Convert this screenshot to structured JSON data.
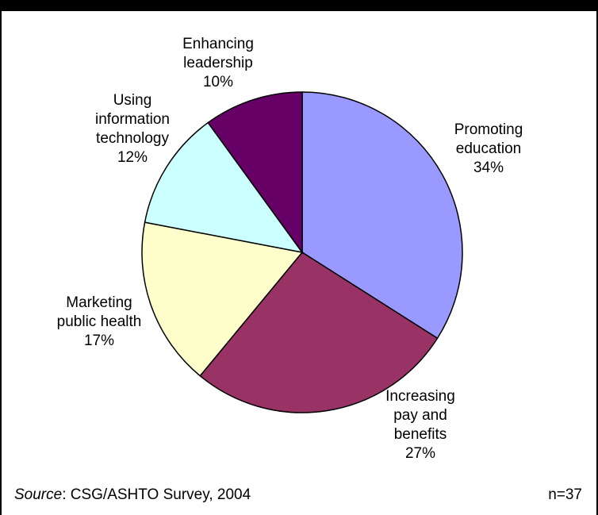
{
  "chart_data": {
    "type": "pie",
    "title": "",
    "slices": [
      {
        "label_lines": [
          "Promoting",
          "education"
        ],
        "value": 34,
        "pct_text": "34%",
        "color": "#9999ff"
      },
      {
        "label_lines": [
          "Increasing",
          "pay and",
          "benefits"
        ],
        "value": 27,
        "pct_text": "27%",
        "color": "#993366"
      },
      {
        "label_lines": [
          "Marketing",
          "public health"
        ],
        "value": 17,
        "pct_text": "17%",
        "color": "#ffffcc"
      },
      {
        "label_lines": [
          "Using",
          "information",
          "technology"
        ],
        "value": 12,
        "pct_text": "12%",
        "color": "#ccffff"
      },
      {
        "label_lines": [
          "Enhancing",
          "leadership"
        ],
        "value": 10,
        "pct_text": "10%",
        "color": "#660066"
      }
    ]
  },
  "footer": {
    "source_label": "Source",
    "source_text": ": CSG/ASHTO Survey, 2004",
    "n_text": "n=37"
  }
}
